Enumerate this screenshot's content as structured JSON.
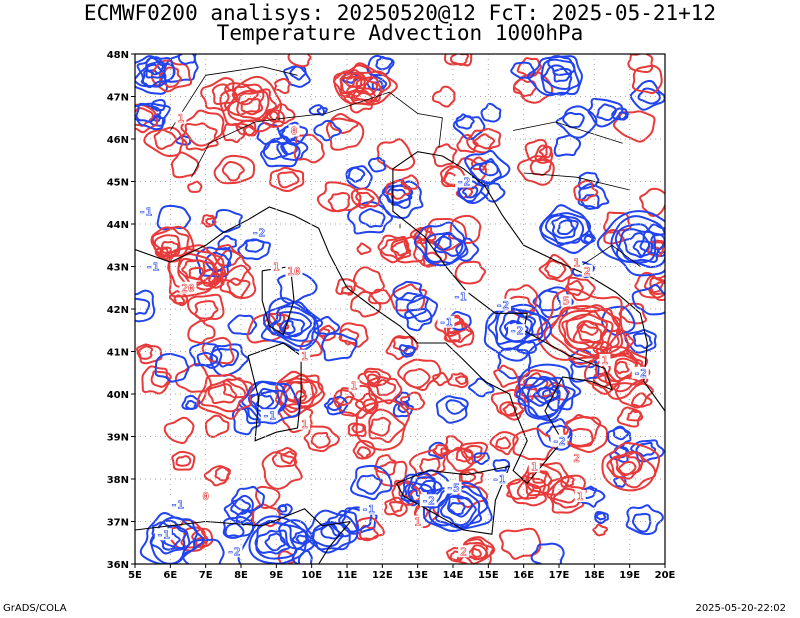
{
  "header": {
    "title_line1": "ECMWF0200 analisys: 20250520@12 FcT: 2025-05-21+12",
    "title_line2": "Temperature Advection 1000hPa"
  },
  "footer": {
    "left": "GrADS/COLA",
    "right": "2025-05-20-22:02"
  },
  "map": {
    "lon_range": [
      5,
      20
    ],
    "lat_range": [
      36,
      48
    ],
    "lon_labels": [
      "5E",
      "6E",
      "7E",
      "8E",
      "9E",
      "10E",
      "11E",
      "12E",
      "13E",
      "14E",
      "15E",
      "16E",
      "17E",
      "18E",
      "19E",
      "20E"
    ],
    "lat_labels": [
      "36N",
      "37N",
      "38N",
      "39N",
      "40N",
      "41N",
      "42N",
      "43N",
      "44N",
      "45N",
      "46N",
      "47N",
      "48N"
    ],
    "grid": "dotted",
    "colors": {
      "positive": "#e83a3a",
      "negative": "#2244ee",
      "coast": "#000000",
      "grid": "#aaaaaa"
    },
    "contour_labels": [
      {
        "text": "1",
        "lon": 6.3,
        "lat": 46.5,
        "sign": "+"
      },
      {
        "text": "0",
        "lon": 9.5,
        "lat": 46.2,
        "sign": "+"
      },
      {
        "text": "-2",
        "lon": 14.3,
        "lat": 45.0,
        "sign": "-"
      },
      {
        "text": "-1",
        "lon": 5.3,
        "lat": 44.3,
        "sign": "-"
      },
      {
        "text": "-2",
        "lon": 8.5,
        "lat": 43.8,
        "sign": "-"
      },
      {
        "text": "-1",
        "lon": 5.5,
        "lat": 43.0,
        "sign": "-"
      },
      {
        "text": "20",
        "lon": 6.5,
        "lat": 42.5,
        "sign": "+"
      },
      {
        "text": "10",
        "lon": 9.5,
        "lat": 42.9,
        "sign": "+"
      },
      {
        "text": "1",
        "lon": 9.0,
        "lat": 43.0,
        "sign": "+"
      },
      {
        "text": "-1",
        "lon": 14.2,
        "lat": 42.3,
        "sign": "-"
      },
      {
        "text": "-2",
        "lon": 15.4,
        "lat": 42.1,
        "sign": "-"
      },
      {
        "text": "1",
        "lon": 17.5,
        "lat": 43.1,
        "sign": "+"
      },
      {
        "text": "2",
        "lon": 17.8,
        "lat": 42.9,
        "sign": "+"
      },
      {
        "text": "5",
        "lon": 17.2,
        "lat": 42.2,
        "sign": "+"
      },
      {
        "text": "-2",
        "lon": 15.8,
        "lat": 41.5,
        "sign": "-"
      },
      {
        "text": "1",
        "lon": 9.8,
        "lat": 40.9,
        "sign": "+"
      },
      {
        "text": "-1",
        "lon": 13.8,
        "lat": 41.7,
        "sign": "-"
      },
      {
        "text": "1",
        "lon": 18.3,
        "lat": 40.8,
        "sign": "+"
      },
      {
        "text": "-1",
        "lon": 8.8,
        "lat": 39.5,
        "sign": "-"
      },
      {
        "text": "1",
        "lon": 9.8,
        "lat": 39.3,
        "sign": "+"
      },
      {
        "text": "1",
        "lon": 11.2,
        "lat": 40.2,
        "sign": "+"
      },
      {
        "text": "-2",
        "lon": 19.3,
        "lat": 40.5,
        "sign": "-"
      },
      {
        "text": "-2",
        "lon": 17.0,
        "lat": 38.9,
        "sign": "-"
      },
      {
        "text": "2",
        "lon": 17.5,
        "lat": 38.5,
        "sign": "+"
      },
      {
        "text": "1",
        "lon": 16.3,
        "lat": 38.3,
        "sign": "+"
      },
      {
        "text": "-1",
        "lon": 15.3,
        "lat": 38.0,
        "sign": "-"
      },
      {
        "text": "-5",
        "lon": 14.0,
        "lat": 37.8,
        "sign": "-"
      },
      {
        "text": "-2",
        "lon": 13.3,
        "lat": 37.5,
        "sign": "-"
      },
      {
        "text": "-1",
        "lon": 6.2,
        "lat": 37.4,
        "sign": "-"
      },
      {
        "text": "0",
        "lon": 7.0,
        "lat": 37.6,
        "sign": "+"
      },
      {
        "text": "-1",
        "lon": 11.6,
        "lat": 37.3,
        "sign": "-"
      },
      {
        "text": "1",
        "lon": 13.0,
        "lat": 37.0,
        "sign": "+"
      },
      {
        "text": "-2",
        "lon": 7.8,
        "lat": 36.3,
        "sign": "-"
      },
      {
        "text": "2",
        "lon": 14.3,
        "lat": 36.3,
        "sign": "+"
      },
      {
        "text": "1",
        "lon": 17.6,
        "lat": 37.6,
        "sign": "+"
      },
      {
        "text": "-1",
        "lon": 5.8,
        "lat": 36.7,
        "sign": "-"
      }
    ]
  }
}
